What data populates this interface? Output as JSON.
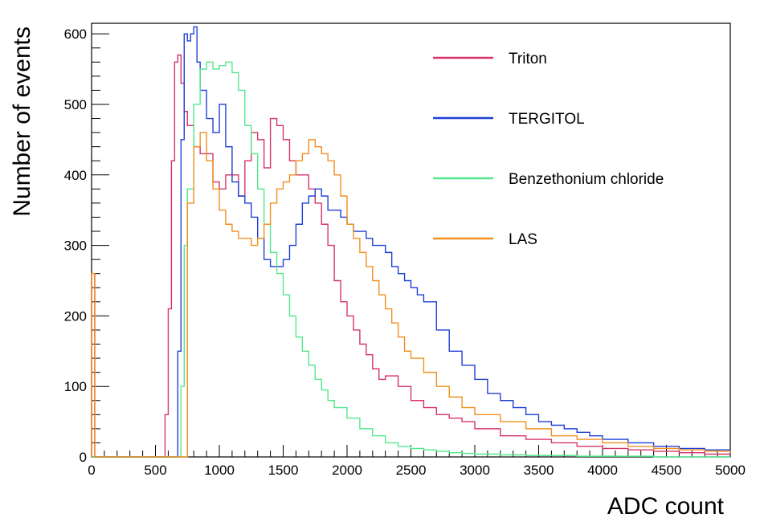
{
  "chart_data": {
    "type": "line",
    "style": "step-histogram",
    "xlabel": "ADC count",
    "ylabel": "Number of events",
    "xlim": [
      0,
      5000
    ],
    "ylim": [
      0,
      615
    ],
    "x_ticks": [
      0,
      500,
      1000,
      1500,
      2000,
      2500,
      3000,
      3500,
      4000,
      4500,
      5000
    ],
    "y_ticks": [
      0,
      100,
      200,
      300,
      400,
      500,
      600
    ],
    "legend_position": "top-right",
    "bin_width": 25,
    "series": [
      {
        "name": "Triton",
        "color": "#d6336c",
        "x": [
          0,
          25,
          500,
          550,
          575,
          600,
          625,
          650,
          675,
          700,
          725,
          750,
          800,
          850,
          900,
          950,
          1000,
          1050,
          1100,
          1150,
          1200,
          1250,
          1300,
          1350,
          1400,
          1450,
          1500,
          1550,
          1600,
          1650,
          1700,
          1750,
          1800,
          1850,
          1900,
          1950,
          2000,
          2050,
          2100,
          2150,
          2200,
          2250,
          2300,
          2400,
          2500,
          2600,
          2700,
          2800,
          2900,
          3000,
          3200,
          3400,
          3600,
          3800,
          4000,
          4200,
          4400,
          4600,
          4800,
          5000
        ],
        "values": [
          260,
          0,
          0,
          0,
          60,
          210,
          420,
          560,
          570,
          530,
          490,
          470,
          440,
          430,
          430,
          390,
          380,
          400,
          400,
          370,
          420,
          460,
          450,
          410,
          480,
          470,
          450,
          420,
          400,
          400,
          380,
          360,
          330,
          300,
          250,
          220,
          200,
          180,
          160,
          145,
          125,
          110,
          115,
          100,
          80,
          70,
          60,
          55,
          50,
          40,
          30,
          25,
          20,
          15,
          12,
          10,
          8,
          6,
          4,
          3
        ]
      },
      {
        "name": "TERGITOL",
        "color": "#1f3fd6",
        "x": [
          0,
          25,
          600,
          625,
          650,
          675,
          700,
          725,
          750,
          775,
          800,
          825,
          850,
          900,
          950,
          1000,
          1050,
          1100,
          1150,
          1200,
          1250,
          1300,
          1350,
          1400,
          1450,
          1500,
          1550,
          1600,
          1650,
          1700,
          1750,
          1800,
          1850,
          1900,
          1950,
          2000,
          2050,
          2100,
          2150,
          2200,
          2250,
          2300,
          2350,
          2400,
          2450,
          2500,
          2550,
          2600,
          2700,
          2800,
          2900,
          3000,
          3100,
          3200,
          3300,
          3400,
          3500,
          3600,
          3700,
          3800,
          3900,
          4000,
          4200,
          4400,
          4600,
          4800,
          5000
        ],
        "values": [
          0,
          0,
          0,
          0,
          0,
          150,
          450,
          600,
          590,
          600,
          610,
          560,
          520,
          480,
          460,
          500,
          440,
          390,
          370,
          360,
          340,
          310,
          280,
          270,
          270,
          280,
          300,
          330,
          360,
          370,
          380,
          370,
          350,
          350,
          340,
          330,
          320,
          320,
          310,
          300,
          300,
          290,
          270,
          260,
          250,
          240,
          230,
          220,
          180,
          150,
          130,
          110,
          90,
          80,
          70,
          60,
          50,
          45,
          40,
          35,
          30,
          25,
          20,
          15,
          12,
          10,
          8
        ]
      },
      {
        "name": "Benzethonium chloride",
        "color": "#52e88c",
        "x": [
          0,
          25,
          650,
          675,
          700,
          725,
          750,
          800,
          850,
          900,
          950,
          1000,
          1050,
          1100,
          1150,
          1200,
          1250,
          1300,
          1350,
          1400,
          1450,
          1500,
          1550,
          1600,
          1650,
          1700,
          1750,
          1800,
          1850,
          1900,
          2000,
          2100,
          2200,
          2300,
          2400,
          2500,
          2600,
          2700,
          2800,
          2900,
          3000,
          3200,
          3400,
          3600,
          3800,
          4000,
          4200,
          4400,
          4600,
          4800,
          5000
        ],
        "values": [
          0,
          0,
          0,
          0,
          100,
          300,
          380,
          500,
          550,
          560,
          550,
          555,
          560,
          545,
          520,
          470,
          430,
          380,
          330,
          290,
          260,
          230,
          200,
          170,
          150,
          130,
          110,
          95,
          80,
          70,
          55,
          40,
          30,
          20,
          15,
          12,
          10,
          8,
          6,
          5,
          4,
          3,
          2,
          2,
          1,
          1,
          1,
          0,
          0,
          0,
          0
        ]
      },
      {
        "name": "LAS",
        "color": "#f0901f",
        "x": [
          0,
          25,
          600,
          650,
          700,
          750,
          800,
          850,
          900,
          950,
          1000,
          1050,
          1100,
          1150,
          1200,
          1250,
          1300,
          1350,
          1400,
          1450,
          1500,
          1550,
          1600,
          1650,
          1700,
          1750,
          1800,
          1850,
          1900,
          1950,
          2000,
          2050,
          2100,
          2150,
          2200,
          2250,
          2300,
          2350,
          2400,
          2450,
          2500,
          2600,
          2700,
          2800,
          2900,
          3000,
          3200,
          3400,
          3600,
          3800,
          4000,
          4200,
          4400,
          4600,
          4800,
          5000
        ],
        "values": [
          260,
          0,
          0,
          0,
          0,
          360,
          440,
          460,
          420,
          380,
          350,
          330,
          320,
          310,
          310,
          300,
          310,
          330,
          360,
          380,
          390,
          400,
          420,
          430,
          450,
          440,
          430,
          420,
          400,
          370,
          330,
          310,
          290,
          270,
          250,
          230,
          210,
          190,
          170,
          150,
          140,
          120,
          100,
          85,
          70,
          60,
          50,
          40,
          30,
          25,
          20,
          15,
          12,
          10,
          8,
          6
        ]
      }
    ]
  }
}
